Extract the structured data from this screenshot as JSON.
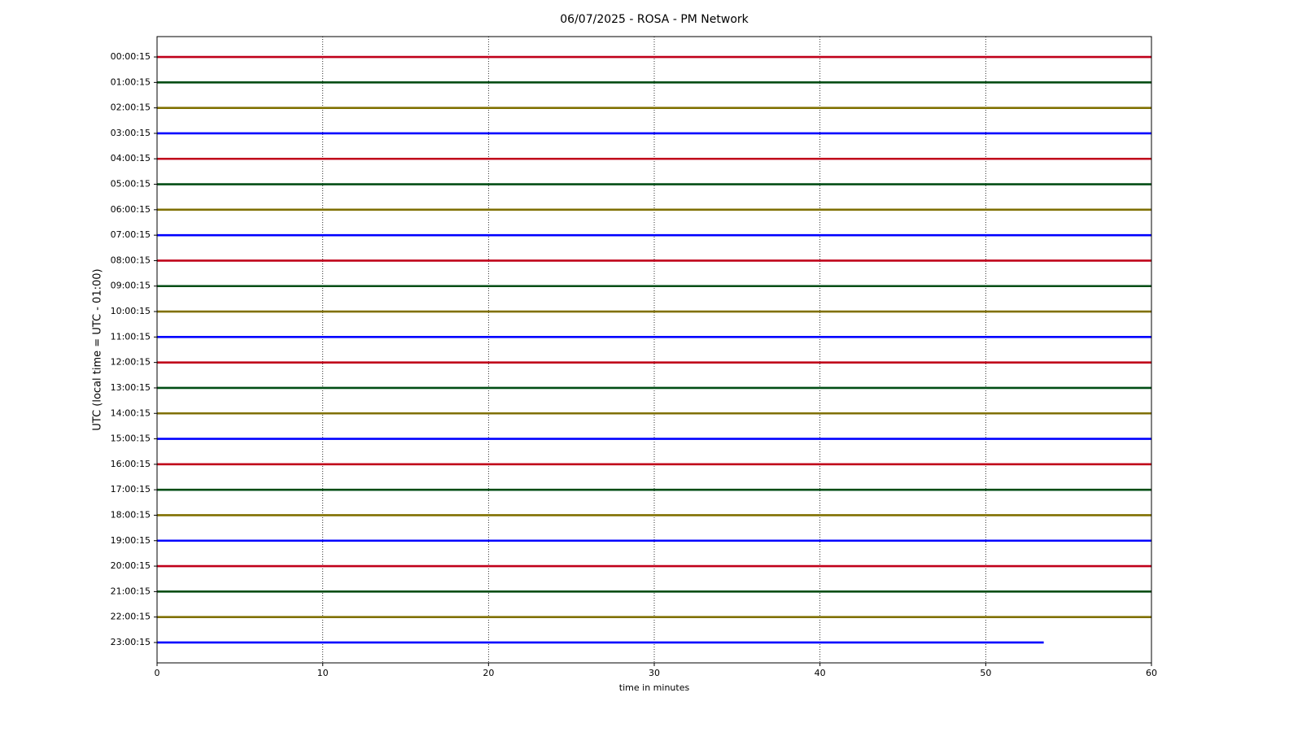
{
  "chart_data": {
    "type": "dayplot",
    "title": "06/07/2025 - ROSA - PM Network",
    "xlabel": "time in minutes",
    "ylabel": "UTC (local time = UTC - 01:00)",
    "xlim": [
      0,
      60
    ],
    "xticks": [
      0,
      10,
      20,
      30,
      40,
      50,
      60
    ],
    "grid": true,
    "colors": [
      "#c0001a",
      "#004d14",
      "#807000",
      "#0000ff"
    ],
    "categories": [
      "00:00:15",
      "01:00:15",
      "02:00:15",
      "03:00:15",
      "04:00:15",
      "05:00:15",
      "06:00:15",
      "07:00:15",
      "08:00:15",
      "09:00:15",
      "10:00:15",
      "11:00:15",
      "12:00:15",
      "13:00:15",
      "14:00:15",
      "15:00:15",
      "16:00:15",
      "17:00:15",
      "18:00:15",
      "19:00:15",
      "20:00:15",
      "21:00:15",
      "22:00:15",
      "23:00:15"
    ],
    "values": [
      60,
      60,
      60,
      60,
      60,
      60,
      60,
      60,
      60,
      60,
      60,
      60,
      60,
      60,
      60,
      60,
      60,
      60,
      60,
      60,
      60,
      60,
      60,
      53.5
    ]
  }
}
